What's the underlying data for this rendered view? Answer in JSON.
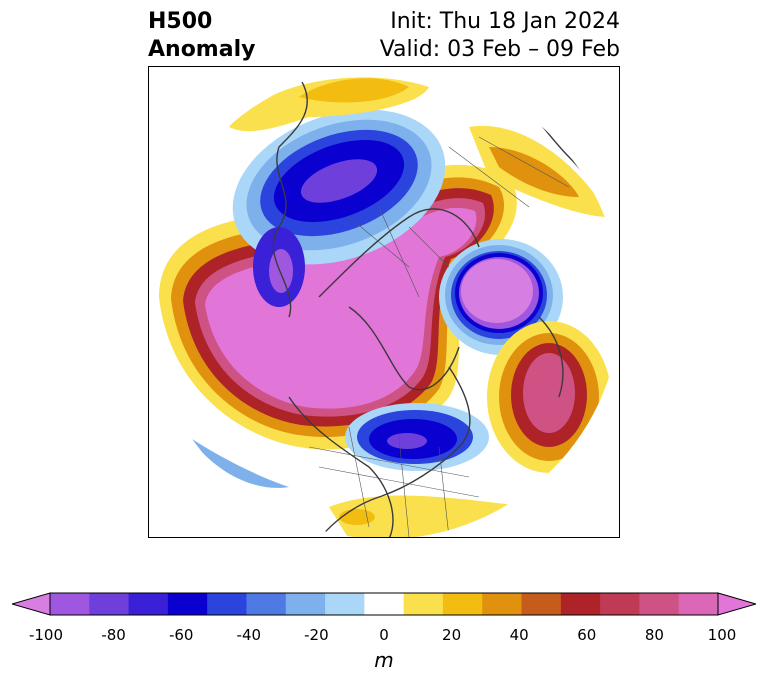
{
  "title": {
    "left_line1": "H500",
    "left_line2": "Anomaly",
    "right_line1": "Init: Thu 18 Jan 2024",
    "right_line2": "Valid: 03 Feb – 09 Feb"
  },
  "colorbar": {
    "unit": "m",
    "ticks": [
      "-100",
      "-80",
      "-60",
      "-40",
      "-20",
      "0",
      "20",
      "40",
      "60",
      "80",
      "100"
    ],
    "range": [
      -100,
      100
    ],
    "colors": [
      "#d77ee3",
      "#9f57e0",
      "#6e3fdb",
      "#3a20d6",
      "#0a00d0",
      "#2a44dd",
      "#4f7ae4",
      "#7eb0ec",
      "#aad6f7",
      "#ffffff",
      "#fbe04d",
      "#f2bc10",
      "#e0920f",
      "#c65c1c",
      "#ad2327",
      "#bf3a55",
      "#cf5285",
      "#da68b6",
      "#e275d8"
    ]
  },
  "map": {
    "projection": "north-polar-stereographic",
    "features": [
      "coastlines",
      "country-borders",
      "us-state-borders"
    ]
  }
}
